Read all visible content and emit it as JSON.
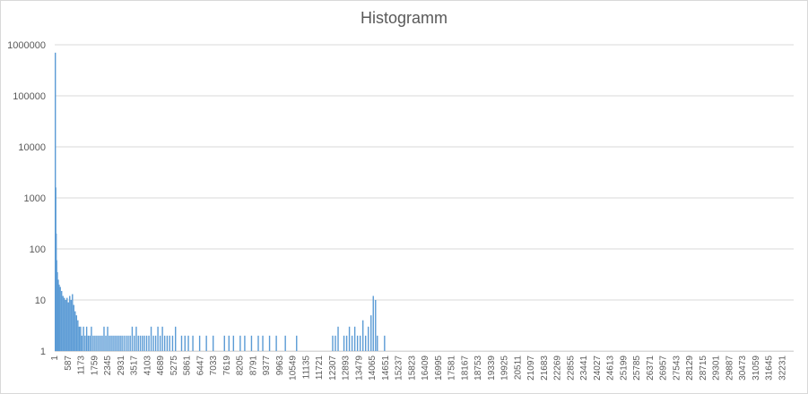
{
  "chart_data": {
    "type": "bar",
    "title": "Histogramm",
    "xlabel": "",
    "ylabel": "",
    "y_scale": "log",
    "ylim": [
      1,
      1000000
    ],
    "y_ticks": [
      "1",
      "10",
      "100",
      "1000",
      "10000",
      "100000",
      "1000000"
    ],
    "x_range": [
      1,
      32768
    ],
    "x_tick_labels": [
      "1",
      "587",
      "1173",
      "1759",
      "2345",
      "2931",
      "3517",
      "4103",
      "4689",
      "5275",
      "5861",
      "6447",
      "7033",
      "7619",
      "8205",
      "8791",
      "9377",
      "9963",
      "10549",
      "11135",
      "11721",
      "12307",
      "12893",
      "13479",
      "14065",
      "14651",
      "15237",
      "15823",
      "16409",
      "16995",
      "17581",
      "18167",
      "18753",
      "19339",
      "19925",
      "20511",
      "21097",
      "21683",
      "22269",
      "22855",
      "23441",
      "24027",
      "24613",
      "25199",
      "25785",
      "26371",
      "26957",
      "27543",
      "28129",
      "28715",
      "29301",
      "29887",
      "30473",
      "31059",
      "31645",
      "32231"
    ],
    "grid": true,
    "legend": "none",
    "bar_color": "#5b9bd5",
    "series": [
      {
        "values": [
          {
            "x": 1,
            "y": 700000
          },
          {
            "x": 20,
            "y": 1600
          },
          {
            "x": 40,
            "y": 200
          },
          {
            "x": 60,
            "y": 60
          },
          {
            "x": 90,
            "y": 35
          },
          {
            "x": 130,
            "y": 25
          },
          {
            "x": 170,
            "y": 20
          },
          {
            "x": 220,
            "y": 18
          },
          {
            "x": 280,
            "y": 15
          },
          {
            "x": 340,
            "y": 12
          },
          {
            "x": 400,
            "y": 11
          },
          {
            "x": 460,
            "y": 10
          },
          {
            "x": 520,
            "y": 11
          },
          {
            "x": 580,
            "y": 9
          },
          {
            "x": 640,
            "y": 12
          },
          {
            "x": 700,
            "y": 10
          },
          {
            "x": 760,
            "y": 13
          },
          {
            "x": 820,
            "y": 8
          },
          {
            "x": 880,
            "y": 6
          },
          {
            "x": 940,
            "y": 5
          },
          {
            "x": 1000,
            "y": 4
          },
          {
            "x": 1060,
            "y": 3
          },
          {
            "x": 1120,
            "y": 3
          },
          {
            "x": 1180,
            "y": 2
          },
          {
            "x": 1250,
            "y": 3
          },
          {
            "x": 1320,
            "y": 2
          },
          {
            "x": 1390,
            "y": 3
          },
          {
            "x": 1460,
            "y": 2
          },
          {
            "x": 1530,
            "y": 2
          },
          {
            "x": 1600,
            "y": 3
          },
          {
            "x": 1680,
            "y": 2
          },
          {
            "x": 1760,
            "y": 2
          },
          {
            "x": 1840,
            "y": 2
          },
          {
            "x": 1920,
            "y": 2
          },
          {
            "x": 2000,
            "y": 2
          },
          {
            "x": 2080,
            "y": 2
          },
          {
            "x": 2160,
            "y": 3
          },
          {
            "x": 2240,
            "y": 2
          },
          {
            "x": 2320,
            "y": 3
          },
          {
            "x": 2400,
            "y": 2
          },
          {
            "x": 2480,
            "y": 2
          },
          {
            "x": 2560,
            "y": 2
          },
          {
            "x": 2640,
            "y": 2
          },
          {
            "x": 2720,
            "y": 2
          },
          {
            "x": 2800,
            "y": 2
          },
          {
            "x": 2880,
            "y": 2
          },
          {
            "x": 2960,
            "y": 2
          },
          {
            "x": 3050,
            "y": 2
          },
          {
            "x": 3140,
            "y": 2
          },
          {
            "x": 3230,
            "y": 2
          },
          {
            "x": 3320,
            "y": 2
          },
          {
            "x": 3410,
            "y": 3
          },
          {
            "x": 3500,
            "y": 2
          },
          {
            "x": 3590,
            "y": 3
          },
          {
            "x": 3680,
            "y": 2
          },
          {
            "x": 3770,
            "y": 2
          },
          {
            "x": 3860,
            "y": 2
          },
          {
            "x": 3950,
            "y": 2
          },
          {
            "x": 4050,
            "y": 2
          },
          {
            "x": 4150,
            "y": 2
          },
          {
            "x": 4250,
            "y": 3
          },
          {
            "x": 4350,
            "y": 2
          },
          {
            "x": 4450,
            "y": 2
          },
          {
            "x": 4550,
            "y": 3
          },
          {
            "x": 4650,
            "y": 2
          },
          {
            "x": 4750,
            "y": 3
          },
          {
            "x": 4850,
            "y": 2
          },
          {
            "x": 4960,
            "y": 2
          },
          {
            "x": 5070,
            "y": 2
          },
          {
            "x": 5200,
            "y": 2
          },
          {
            "x": 5330,
            "y": 3
          },
          {
            "x": 5600,
            "y": 2
          },
          {
            "x": 5750,
            "y": 2
          },
          {
            "x": 5900,
            "y": 2
          },
          {
            "x": 6100,
            "y": 2
          },
          {
            "x": 6400,
            "y": 2
          },
          {
            "x": 6700,
            "y": 2
          },
          {
            "x": 7000,
            "y": 2
          },
          {
            "x": 7500,
            "y": 2
          },
          {
            "x": 7700,
            "y": 2
          },
          {
            "x": 7900,
            "y": 2
          },
          {
            "x": 8200,
            "y": 2
          },
          {
            "x": 8400,
            "y": 2
          },
          {
            "x": 8700,
            "y": 2
          },
          {
            "x": 9000,
            "y": 2
          },
          {
            "x": 9200,
            "y": 2
          },
          {
            "x": 9500,
            "y": 2
          },
          {
            "x": 9800,
            "y": 2
          },
          {
            "x": 10200,
            "y": 2
          },
          {
            "x": 10700,
            "y": 2
          },
          {
            "x": 12300,
            "y": 2
          },
          {
            "x": 12420,
            "y": 2
          },
          {
            "x": 12540,
            "y": 3
          },
          {
            "x": 12800,
            "y": 2
          },
          {
            "x": 12920,
            "y": 2
          },
          {
            "x": 13040,
            "y": 3
          },
          {
            "x": 13160,
            "y": 2
          },
          {
            "x": 13280,
            "y": 3
          },
          {
            "x": 13400,
            "y": 2
          },
          {
            "x": 13520,
            "y": 2
          },
          {
            "x": 13640,
            "y": 4
          },
          {
            "x": 13760,
            "y": 2
          },
          {
            "x": 13880,
            "y": 3
          },
          {
            "x": 14000,
            "y": 5
          },
          {
            "x": 14100,
            "y": 12
          },
          {
            "x": 14200,
            "y": 10
          },
          {
            "x": 14280,
            "y": 2
          },
          {
            "x": 14600,
            "y": 2
          }
        ]
      }
    ]
  }
}
